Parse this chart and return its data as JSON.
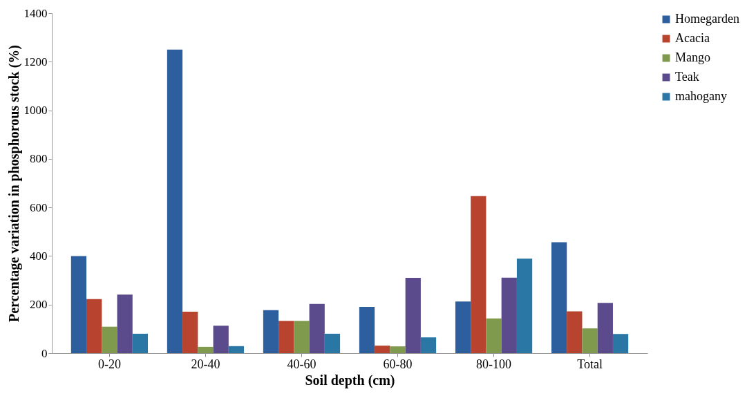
{
  "chart_data": {
    "type": "bar",
    "xlabel": "Soil depth (cm)",
    "ylabel": "Percentage variation in phosphorous stock (%)",
    "categories": [
      "0-20",
      "20-40",
      "40-60",
      "60-80",
      "80-100",
      "Total"
    ],
    "ylim": [
      0,
      1400
    ],
    "yticks": [
      0,
      200,
      400,
      600,
      800,
      1000,
      1200,
      1400
    ],
    "grid": false,
    "legend": "right",
    "series": [
      {
        "name": "Homegarden",
        "color": "#2d5e9e",
        "values": [
          400,
          1250,
          177,
          191,
          213,
          457
        ]
      },
      {
        "name": "Acacia",
        "color": "#b8432f",
        "values": [
          223,
          171,
          133,
          31,
          647,
          172
        ]
      },
      {
        "name": "Mango",
        "color": "#7f9a4c",
        "values": [
          109,
          26,
          133,
          28,
          143,
          102
        ]
      },
      {
        "name": "Teak",
        "color": "#5b4a8c",
        "values": [
          241,
          113,
          203,
          310,
          311,
          207
        ]
      },
      {
        "name": "mahogany",
        "color": "#2a76a4",
        "values": [
          80,
          29,
          80,
          65,
          389,
          79
        ]
      }
    ]
  }
}
